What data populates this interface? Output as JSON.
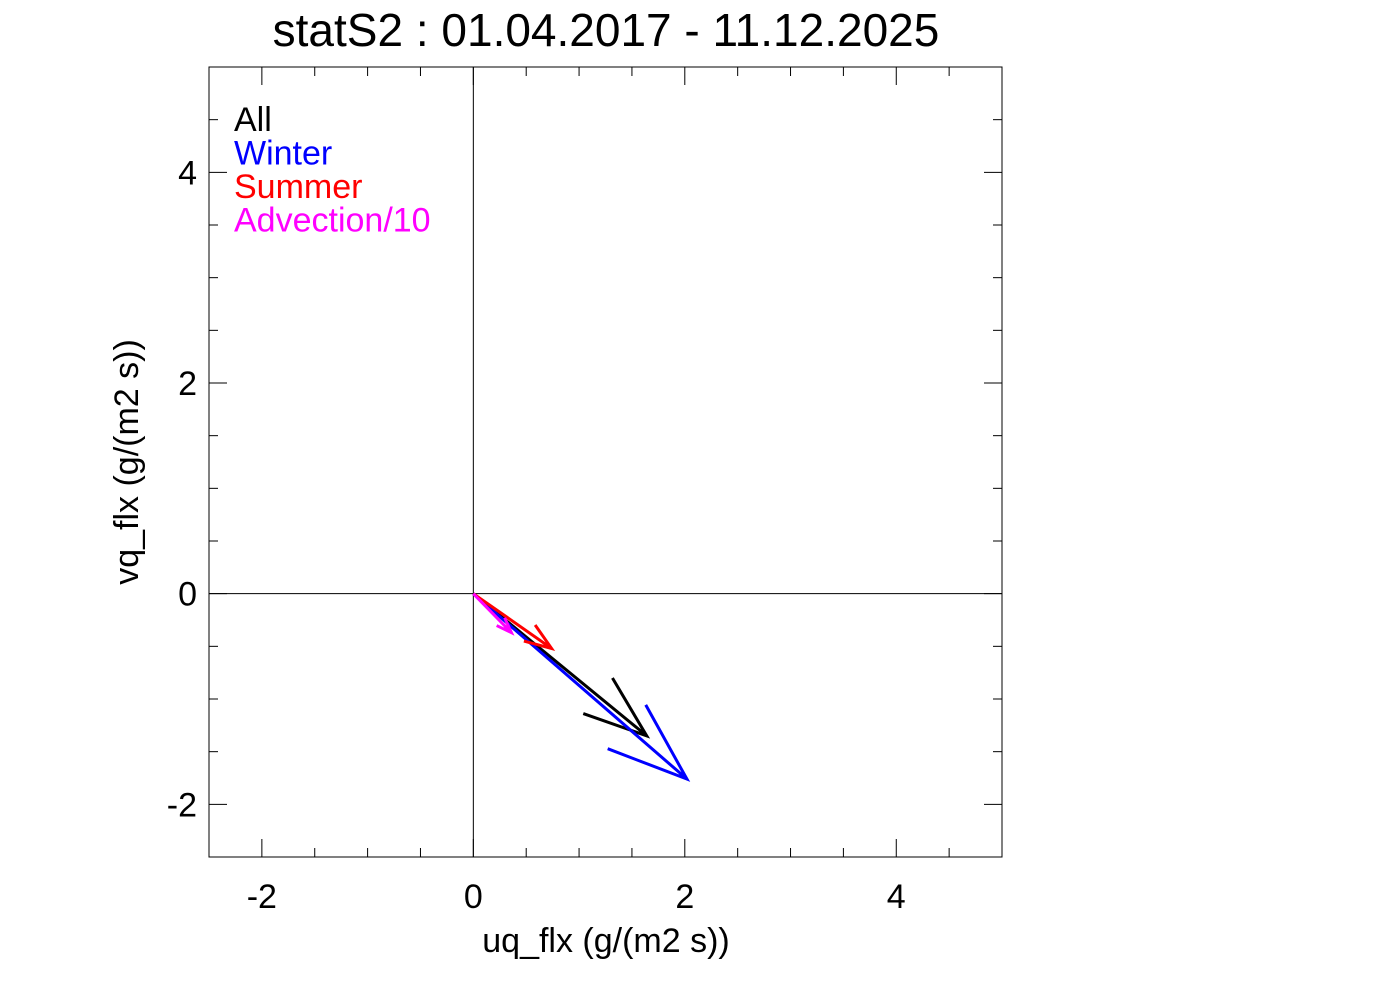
{
  "chart_data": {
    "type": "vector",
    "title": "statS2 : 01.04.2017 - 11.12.2025",
    "xlabel": "uq_flx (g/(m2 s))",
    "ylabel": "vq_flx (g/(m2 s))",
    "xlim": [
      -2.5,
      5
    ],
    "ylim": [
      -2.5,
      5
    ],
    "x_ticks": [
      -2,
      0,
      2,
      4
    ],
    "x_tick_labels": [
      "-2",
      "0",
      "2",
      "4"
    ],
    "y_ticks": [
      -2,
      0,
      2,
      4
    ],
    "y_tick_labels": [
      "-2",
      "0",
      "2",
      "4"
    ],
    "minor_tick_step": 0.5,
    "zero_lines": true,
    "grid": false,
    "legend_position": "top-left",
    "series": [
      {
        "name": "All",
        "color": "#000000",
        "u": 1.64,
        "v": -1.35
      },
      {
        "name": "Winter",
        "color": "#0000ff",
        "u": 2.02,
        "v": -1.76
      },
      {
        "name": "Summer",
        "color": "#ff0000",
        "u": 0.74,
        "v": -0.52
      },
      {
        "name": "Advection/10",
        "color": "#ff00ff",
        "u": 0.36,
        "v": -0.37
      }
    ]
  }
}
